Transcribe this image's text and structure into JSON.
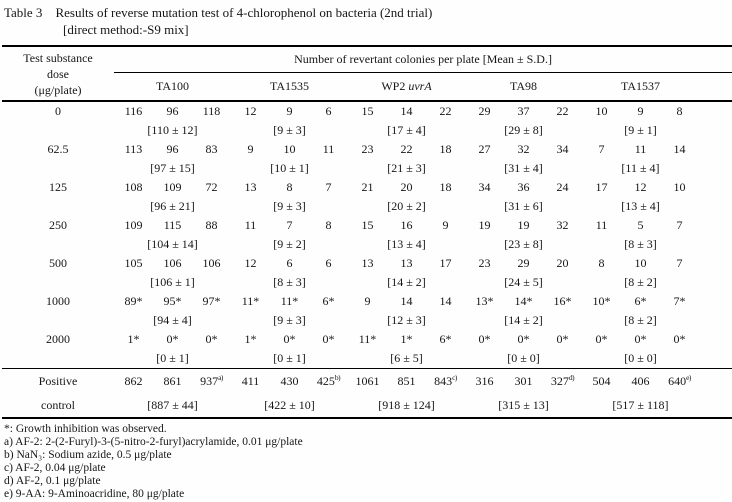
{
  "title": {
    "label": "Table 3",
    "text": "Results of reverse mutation test of 4-chlorophenol on bacteria (2nd trial)",
    "subtitle": "[direct method:-S9 mix]"
  },
  "header": {
    "dose_lines": [
      "Test substance",
      "dose",
      "(μg/plate)"
    ],
    "group_label": "Number of revertant colonies per plate [Mean ± S.D.]",
    "strains": [
      {
        "id": "ta100",
        "pre": "TA100",
        "italic": ""
      },
      {
        "id": "ta1535",
        "pre": "TA1535",
        "italic": ""
      },
      {
        "id": "wp2-uvra",
        "pre": "WP2 ",
        "italic": "uvrA"
      },
      {
        "id": "ta98",
        "pre": "TA98",
        "italic": ""
      },
      {
        "id": "ta1537",
        "pre": "TA1537",
        "italic": ""
      }
    ]
  },
  "rows": [
    {
      "dose": "0",
      "reps": [
        [
          "116",
          "96",
          "118"
        ],
        [
          "12",
          "9",
          "6"
        ],
        [
          "15",
          "14",
          "22"
        ],
        [
          "29",
          "37",
          "22"
        ],
        [
          "10",
          "9",
          "8"
        ]
      ],
      "means": [
        "[110 ± 12]",
        "[9 ± 3]",
        "[17 ± 4]",
        "[29 ± 8]",
        "[9 ± 1]"
      ]
    },
    {
      "dose": "62.5",
      "reps": [
        [
          "113",
          "96",
          "83"
        ],
        [
          "9",
          "10",
          "11"
        ],
        [
          "23",
          "22",
          "18"
        ],
        [
          "27",
          "32",
          "34"
        ],
        [
          "7",
          "11",
          "14"
        ]
      ],
      "means": [
        "[97 ± 15]",
        "[10 ± 1]",
        "[21 ± 3]",
        "[31 ± 4]",
        "[11 ± 4]"
      ]
    },
    {
      "dose": "125",
      "reps": [
        [
          "108",
          "109",
          "72"
        ],
        [
          "13",
          "8",
          "7"
        ],
        [
          "21",
          "20",
          "18"
        ],
        [
          "34",
          "36",
          "24"
        ],
        [
          "17",
          "12",
          "10"
        ]
      ],
      "means": [
        "[96 ± 21]",
        "[9 ± 3]",
        "[20 ± 2]",
        "[31 ± 6]",
        "[13 ± 4]"
      ]
    },
    {
      "dose": "250",
      "reps": [
        [
          "109",
          "115",
          "88"
        ],
        [
          "11",
          "7",
          "8"
        ],
        [
          "15",
          "16",
          "9"
        ],
        [
          "19",
          "19",
          "32"
        ],
        [
          "11",
          "5",
          "7"
        ]
      ],
      "means": [
        "[104 ± 14]",
        "[9 ± 2]",
        "[13 ± 4]",
        "[23 ± 8]",
        "[8 ± 3]"
      ]
    },
    {
      "dose": "500",
      "reps": [
        [
          "105",
          "106",
          "106"
        ],
        [
          "12",
          "6",
          "6"
        ],
        [
          "13",
          "13",
          "17"
        ],
        [
          "23",
          "29",
          "20"
        ],
        [
          "8",
          "10",
          "7"
        ]
      ],
      "means": [
        "[106 ± 1]",
        "[8 ± 3]",
        "[14 ± 2]",
        "[24 ± 5]",
        "[8 ± 2]"
      ]
    },
    {
      "dose": "1000",
      "reps": [
        [
          "89*",
          "95*",
          "97*"
        ],
        [
          "11*",
          "11*",
          "6*"
        ],
        [
          "9",
          "14",
          "14"
        ],
        [
          "13*",
          "14*",
          "16*"
        ],
        [
          "10*",
          "6*",
          "7*"
        ]
      ],
      "means": [
        "[94 ± 4]",
        "[9 ± 3]",
        "[12 ± 3]",
        "[14 ± 2]",
        "[8 ± 2]"
      ]
    },
    {
      "dose": "2000",
      "reps": [
        [
          "1*",
          "0*",
          "0*"
        ],
        [
          "1*",
          "0*",
          "0*"
        ],
        [
          "11*",
          "1*",
          "6*"
        ],
        [
          "0*",
          "0*",
          "0*"
        ],
        [
          "0*",
          "0*",
          "0*"
        ]
      ],
      "means": [
        "[0 ± 1]",
        "[0 ± 1]",
        "[6 ± 5]",
        "[0 ± 0]",
        "[0 ± 0]"
      ]
    }
  ],
  "positive_control": {
    "dose_lines": [
      "Positive",
      "control"
    ],
    "reps": [
      [
        "862",
        "861",
        "937"
      ],
      [
        "411",
        "430",
        "425"
      ],
      [
        "1061",
        "851",
        "843"
      ],
      [
        "316",
        "301",
        "327"
      ],
      [
        "504",
        "406",
        "640"
      ]
    ],
    "sup_refs": [
      "a)",
      "b)",
      "c)",
      "d)",
      "e)"
    ],
    "means": [
      "[887 ± 44]",
      "[422 ± 10]",
      "[918 ± 124]",
      "[315 ± 13]",
      "[517 ± 118]"
    ]
  },
  "footnotes": [
    "*: Growth inhibition was observed.",
    "a) AF-2: 2-(2-Furyl)-3-(5-nitro-2-furyl)acrylamide, 0.01 μg/plate",
    "b) NaN₃: Sodium azide, 0.5 μg/plate",
    "c) AF-2, 0.04 μg/plate",
    "d) AF-2, 0.1 μg/plate",
    "e) 9-AA: 9-Aminoacridine, 80 μg/plate"
  ]
}
